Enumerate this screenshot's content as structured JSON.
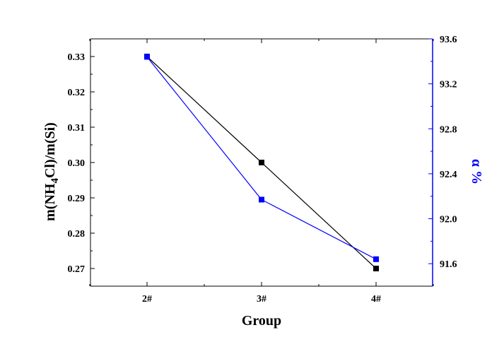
{
  "chart_data": {
    "type": "line",
    "x_label": "Group",
    "y_left_label_parts": {
      "pre": "m(NH",
      "sub": "4",
      "post": "Cl)/m(Si)"
    },
    "y_right_label": "α %",
    "categories": [
      "2#",
      "3#",
      "4#"
    ],
    "y_left_range": [
      0.265,
      0.335
    ],
    "y_left_ticks": [
      "0.27",
      "0.28",
      "0.29",
      "0.30",
      "0.31",
      "0.32",
      "0.33"
    ],
    "y_right_range": [
      91.4,
      93.6
    ],
    "y_right_ticks": [
      "91.6",
      "92.0",
      "92.4",
      "92.8",
      "93.2",
      "93.6"
    ],
    "grid": false,
    "series": [
      {
        "axis": "left",
        "color": "#000000",
        "values": [
          0.33,
          0.3,
          0.27
        ]
      },
      {
        "axis": "right",
        "color": "#0000ff",
        "values": [
          93.44,
          92.17,
          91.64
        ]
      }
    ]
  }
}
